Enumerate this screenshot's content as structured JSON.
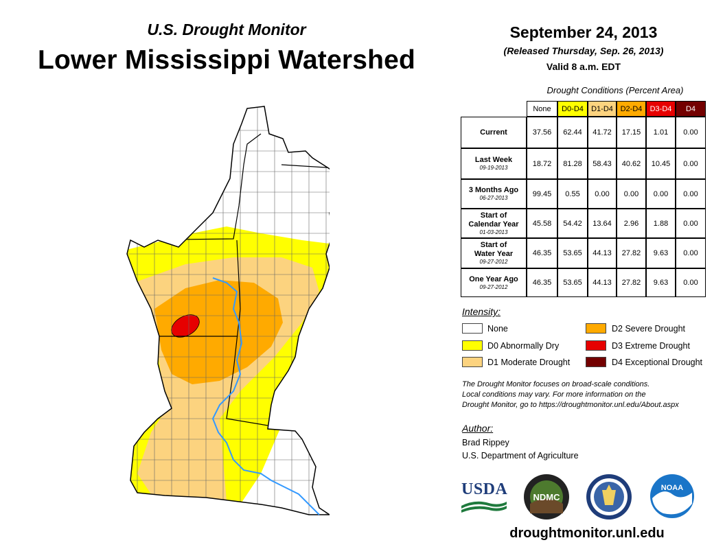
{
  "header": {
    "subtitle": "U.S. Drought Monitor",
    "title": "Lower Mississippi Watershed",
    "date": "September 24, 2013",
    "released": "(Released Thursday, Sep. 26, 2013)",
    "valid": "Valid 8 a.m. EDT"
  },
  "table": {
    "caption": "Drought Conditions (Percent Area)",
    "columns": [
      "None",
      "D0-D4",
      "D1-D4",
      "D2-D4",
      "D3-D4",
      "D4"
    ],
    "column_colors": [
      "#ffffff",
      "#ffff00",
      "#fcd37f",
      "#ffaa00",
      "#e60000",
      "#730000"
    ],
    "rows": [
      {
        "label": "Current",
        "date": "",
        "values": [
          "37.56",
          "62.44",
          "41.72",
          "17.15",
          "1.01",
          "0.00"
        ]
      },
      {
        "label": "Last Week",
        "date": "09-19-2013",
        "values": [
          "18.72",
          "81.28",
          "58.43",
          "40.62",
          "10.45",
          "0.00"
        ]
      },
      {
        "label": "3 Months Ago",
        "date": "06-27-2013",
        "values": [
          "99.45",
          "0.55",
          "0.00",
          "0.00",
          "0.00",
          "0.00"
        ]
      },
      {
        "label": "Start of Calendar Year",
        "date": "01-03-2013",
        "values": [
          "45.58",
          "54.42",
          "13.64",
          "2.96",
          "1.88",
          "0.00"
        ]
      },
      {
        "label": "Start of Water Year",
        "date": "09-27-2012",
        "values": [
          "46.35",
          "53.65",
          "44.13",
          "27.82",
          "9.63",
          "0.00"
        ]
      },
      {
        "label": "One Year Ago",
        "date": "09-27-2012",
        "values": [
          "46.35",
          "53.65",
          "44.13",
          "27.82",
          "9.63",
          "0.00"
        ]
      }
    ]
  },
  "legend": {
    "title": "Intensity:",
    "items": [
      {
        "label": "None",
        "color": "#ffffff"
      },
      {
        "label": "D0 Abnormally Dry",
        "color": "#ffff00"
      },
      {
        "label": "D1 Moderate Drought",
        "color": "#fcd37f"
      },
      {
        "label": "D2 Severe Drought",
        "color": "#ffaa00"
      },
      {
        "label": "D3 Extreme Drought",
        "color": "#e60000"
      },
      {
        "label": "D4 Exceptional Drought",
        "color": "#730000"
      }
    ]
  },
  "note": {
    "line1": "The Drought Monitor focuses on broad-scale conditions.",
    "line2": "Local conditions may vary. For more information on the",
    "line3": "Drought Monitor, go to https://droughtmonitor.unl.edu/About.aspx"
  },
  "author": {
    "label": "Author:",
    "name": "Brad Rippey",
    "org": "U.S. Department of Agriculture"
  },
  "logos": {
    "usda": "USDA",
    "ndmc": "NDMC",
    "noaa": "NOAA"
  },
  "footer_url": "droughtmonitor.unl.edu",
  "colors": {
    "none": "#ffffff",
    "d0": "#ffff00",
    "d1": "#fcd37f",
    "d2": "#ffaa00",
    "d3": "#e60000",
    "river": "#3399ff",
    "border": "#000000"
  }
}
